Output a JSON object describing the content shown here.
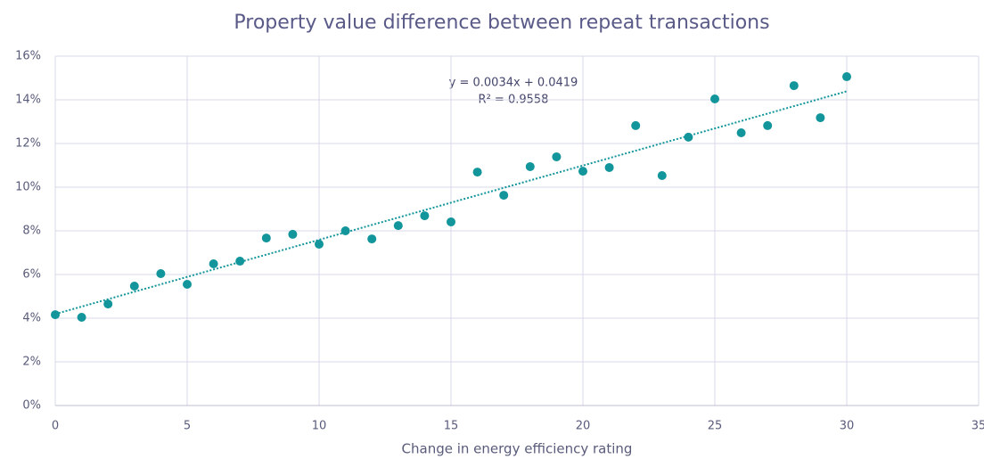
{
  "chart_data": {
    "type": "scatter",
    "title": "Property value difference between repeat transactions",
    "x_label": "Change in energy efficiency rating",
    "annotations": [
      "y = 0.0034x + 0.0419",
      "R² = 0.9558"
    ],
    "x": [
      0,
      1,
      2,
      3,
      4,
      5,
      6,
      7,
      8,
      9,
      10,
      11,
      12,
      13,
      14,
      15,
      16,
      17,
      18,
      19,
      20,
      21,
      22,
      23,
      24,
      25,
      26,
      27,
      28,
      29,
      30
    ],
    "series": [
      {
        "color": "#13969b",
        "values": [
          4.16,
          4.04,
          4.65,
          5.47,
          6.04,
          5.55,
          6.49,
          6.61,
          7.67,
          7.84,
          7.39,
          8.0,
          7.63,
          8.24,
          8.69,
          8.41,
          10.69,
          9.63,
          10.94,
          11.39,
          10.73,
          10.9,
          12.82,
          10.53,
          12.29,
          14.04,
          12.49,
          12.82,
          14.65,
          13.18,
          15.06
        ]
      }
    ],
    "trendline": {
      "x": [
        0,
        30
      ],
      "values": [
        4.19,
        14.39
      ],
      "color": "#13969b"
    },
    "xlim": [
      0,
      35
    ],
    "xticks": [
      0,
      5,
      10,
      15,
      20,
      25,
      30,
      35
    ],
    "ylim": [
      0,
      16
    ],
    "yticks": [
      {
        "value": 0,
        "label": "0%"
      },
      {
        "value": 2,
        "label": "2%"
      },
      {
        "value": 4,
        "label": "4%"
      },
      {
        "value": 6,
        "label": "6%"
      },
      {
        "value": 8,
        "label": "8%"
      },
      {
        "value": 10,
        "label": "10%"
      },
      {
        "value": 12,
        "label": "12%"
      },
      {
        "value": 14,
        "label": "14%"
      },
      {
        "value": 16,
        "label": "16%"
      }
    ],
    "grid": true
  }
}
